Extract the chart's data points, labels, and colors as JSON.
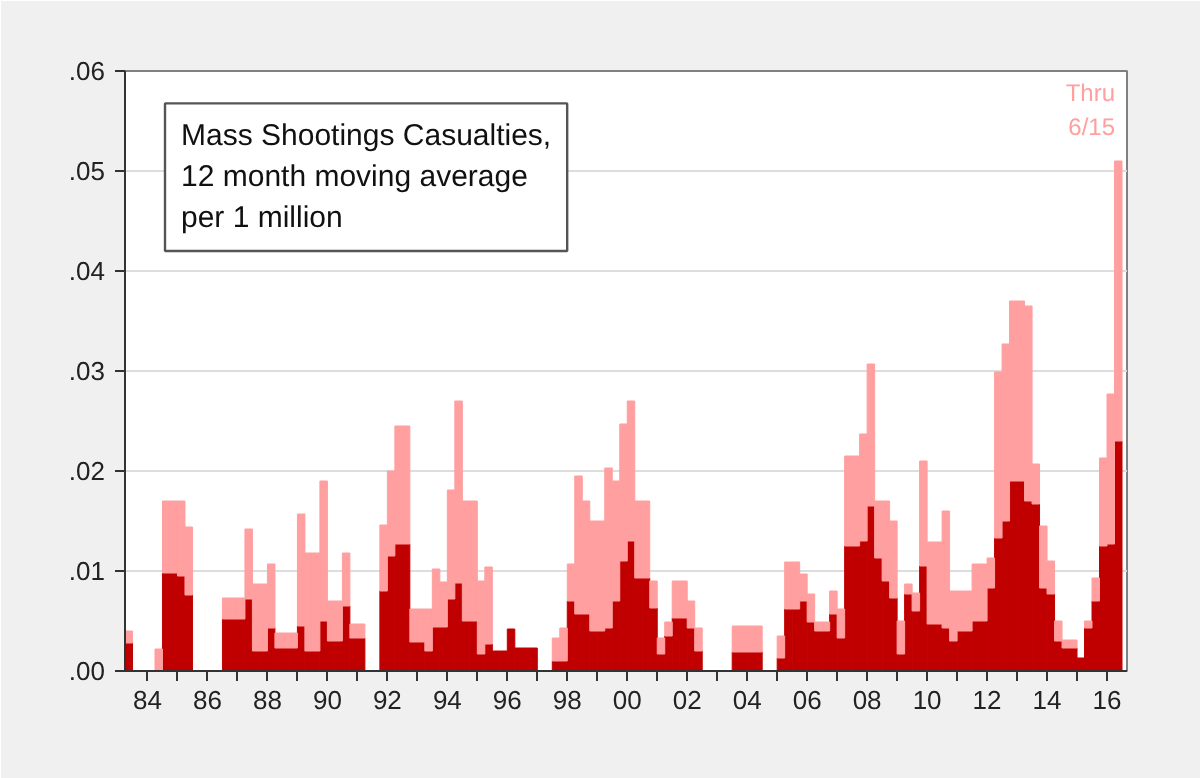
{
  "chart_data": {
    "type": "bar",
    "title": "Mass Shootings Casualties,\n12 month moving average\nper 1 million",
    "stacked": true,
    "annotations": [
      "Thru\n6/15"
    ],
    "x": [
      "1983-04",
      "1983-07",
      "1983-10",
      "1984-01",
      "1984-04",
      "1984-07",
      "1984-10",
      "1985-01",
      "1985-04",
      "1985-07",
      "1985-10",
      "1986-01",
      "1986-04",
      "1986-07",
      "1986-10",
      "1987-01",
      "1987-04",
      "1987-07",
      "1987-10",
      "1988-01",
      "1988-04",
      "1988-07",
      "1988-10",
      "1989-01",
      "1989-04",
      "1989-07",
      "1989-10",
      "1990-01",
      "1990-04",
      "1990-07",
      "1990-10",
      "1991-01",
      "1991-04",
      "1991-07",
      "1991-10",
      "1992-01",
      "1992-04",
      "1992-07",
      "1992-10",
      "1993-01",
      "1993-04",
      "1993-07",
      "1993-10",
      "1994-01",
      "1994-04",
      "1994-07",
      "1994-10",
      "1995-01",
      "1995-04",
      "1995-07",
      "1995-10",
      "1996-01",
      "1996-04",
      "1996-07",
      "1996-10",
      "1997-01",
      "1997-04",
      "1997-07",
      "1997-10",
      "1998-01",
      "1998-04",
      "1998-07",
      "1998-10",
      "1999-01",
      "1999-04",
      "1999-07",
      "1999-10",
      "2000-01",
      "2000-04",
      "2000-07",
      "2000-10",
      "2001-01",
      "2001-04",
      "2001-07",
      "2001-10",
      "2002-01",
      "2002-04",
      "2002-07",
      "2002-10",
      "2003-01",
      "2003-04",
      "2003-07",
      "2003-10",
      "2004-01",
      "2004-04",
      "2004-07",
      "2004-10",
      "2005-01",
      "2005-04",
      "2005-07",
      "2005-10",
      "2006-01",
      "2006-04",
      "2006-07",
      "2006-10",
      "2007-01",
      "2007-04",
      "2007-07",
      "2007-10",
      "2008-01",
      "2008-04",
      "2008-07",
      "2008-10",
      "2009-01",
      "2009-04",
      "2009-07",
      "2009-10",
      "2010-01",
      "2010-04",
      "2010-07",
      "2010-10",
      "2011-01",
      "2011-04",
      "2011-07",
      "2011-10",
      "2012-01",
      "2012-04",
      "2012-07",
      "2012-10",
      "2013-01",
      "2013-04",
      "2013-07",
      "2013-10",
      "2014-01",
      "2014-04",
      "2014-07",
      "2014-10",
      "2015-01",
      "2015-04",
      "2015-07",
      "2015-10",
      "2016-01",
      "2016-04"
    ],
    "series": [
      {
        "color": "#c00000",
        "values": [
          0.0028,
          null,
          null,
          null,
          null,
          0.0098,
          0.0098,
          0.0095,
          0.0076,
          null,
          null,
          null,
          null,
          0.0052,
          0.0052,
          0.0052,
          0.0072,
          0.002,
          0.002,
          0.0043,
          0.0023,
          0.0023,
          0.0023,
          0.0045,
          0.002,
          0.002,
          0.005,
          0.003,
          0.003,
          0.0065,
          0.0033,
          0.0033,
          null,
          null,
          0.008,
          0.0115,
          0.0127,
          0.0127,
          0.0029,
          0.0029,
          0.002,
          0.0044,
          0.0044,
          0.0072,
          0.0088,
          0.005,
          0.005,
          0.0017,
          0.0027,
          0.002,
          0.002,
          0.0042,
          0.0023,
          0.0023,
          0.0023,
          null,
          null,
          0.001,
          0.001,
          0.007,
          0.0057,
          0.0057,
          0.004,
          0.004,
          0.0043,
          0.007,
          0.011,
          0.013,
          0.0093,
          0.0093,
          0.0063,
          0.0017,
          0.0035,
          0.0053,
          0.0053,
          0.0043,
          0.002,
          null,
          null,
          null,
          null,
          0.0019,
          0.0019,
          0.0019,
          0.0019,
          null,
          null,
          0.0013,
          0.0062,
          0.0062,
          0.007,
          0.0049,
          0.004,
          0.004,
          0.0057,
          0.0033,
          0.0125,
          0.0125,
          0.013,
          0.0165,
          0.0113,
          0.009,
          0.0073,
          0.0017,
          0.0077,
          0.006,
          0.0105,
          0.0047,
          0.0047,
          0.0043,
          0.003,
          0.004,
          0.004,
          0.005,
          0.005,
          0.0083,
          0.0133,
          0.015,
          0.019,
          0.019,
          0.017,
          0.0167,
          0.0083,
          0.0077,
          0.003,
          0.0023,
          0.0023,
          0.0013,
          0.0043,
          0.007,
          0.0125,
          0.0127,
          0.023
        ]
      },
      {
        "color": "#ff9f9f",
        "values": [
          0.0012,
          null,
          null,
          null,
          0.0022,
          0.0072,
          0.0072,
          0.0075,
          0.0068,
          null,
          null,
          null,
          null,
          0.0021,
          0.0021,
          0.0021,
          0.007,
          0.0067,
          0.0067,
          0.0064,
          0.0015,
          0.0015,
          0.0015,
          0.0112,
          0.0098,
          0.0098,
          0.014,
          0.004,
          0.004,
          0.0053,
          0.0014,
          0.0014,
          null,
          null,
          0.0066,
          0.0085,
          0.0118,
          0.0118,
          0.0033,
          0.0033,
          0.0042,
          0.0058,
          0.0045,
          0.0109,
          0.0182,
          0.012,
          0.012,
          0.0073,
          0.0077,
          null,
          null,
          null,
          null,
          null,
          null,
          null,
          null,
          0.0023,
          0.0033,
          0.0037,
          0.0138,
          0.0113,
          0.011,
          0.011,
          0.016,
          0.012,
          0.0137,
          0.014,
          0.0077,
          0.0077,
          0.0027,
          0.0016,
          0.0014,
          0.0037,
          0.0037,
          0.0027,
          0.0023,
          null,
          null,
          null,
          null,
          0.0026,
          0.0026,
          0.0026,
          0.0026,
          null,
          null,
          0.0022,
          0.0047,
          0.0047,
          0.0027,
          0.0028,
          0.0009,
          0.0009,
          0.0023,
          0.0029,
          0.009,
          0.009,
          0.0107,
          0.0142,
          0.0057,
          0.008,
          0.0077,
          0.0033,
          0.001,
          0.0018,
          0.0105,
          0.0082,
          0.0082,
          0.0117,
          0.005,
          0.004,
          0.004,
          0.0057,
          0.0057,
          0.003,
          0.0166,
          0.0177,
          0.018,
          0.018,
          0.0195,
          0.004,
          0.0062,
          0.0033,
          0.002,
          0.0008,
          0.0008,
          null,
          0.0007,
          0.0023,
          0.0088,
          0.015,
          0.028
        ]
      }
    ],
    "xlim": [
      "1983-04",
      "2016-09"
    ],
    "xticks": [
      {
        "value": "1984-01",
        "label": "84"
      },
      {
        "value": "1985-01",
        "label": null
      },
      {
        "value": "1986-01",
        "label": "86"
      },
      {
        "value": "1987-01",
        "label": null
      },
      {
        "value": "1988-01",
        "label": "88"
      },
      {
        "value": "1989-01",
        "label": null
      },
      {
        "value": "1990-01",
        "label": "90"
      },
      {
        "value": "1991-01",
        "label": null
      },
      {
        "value": "1992-01",
        "label": "92"
      },
      {
        "value": "1993-01",
        "label": null
      },
      {
        "value": "1994-01",
        "label": "94"
      },
      {
        "value": "1995-01",
        "label": null
      },
      {
        "value": "1996-01",
        "label": "96"
      },
      {
        "value": "1997-01",
        "label": null
      },
      {
        "value": "1998-01",
        "label": "98"
      },
      {
        "value": "1999-01",
        "label": null
      },
      {
        "value": "2000-01",
        "label": "00"
      },
      {
        "value": "2001-01",
        "label": null
      },
      {
        "value": "2002-01",
        "label": "02"
      },
      {
        "value": "2003-01",
        "label": null
      },
      {
        "value": "2004-01",
        "label": "04"
      },
      {
        "value": "2005-01",
        "label": null
      },
      {
        "value": "2006-01",
        "label": "06"
      },
      {
        "value": "2007-01",
        "label": null
      },
      {
        "value": "2008-01",
        "label": "08"
      },
      {
        "value": "2009-01",
        "label": null
      },
      {
        "value": "2010-01",
        "label": "10"
      },
      {
        "value": "2011-01",
        "label": null
      },
      {
        "value": "2012-01",
        "label": "12"
      },
      {
        "value": "2013-01",
        "label": null
      },
      {
        "value": "2014-01",
        "label": "14"
      },
      {
        "value": "2015-01",
        "label": null
      },
      {
        "value": "2016-01",
        "label": "16"
      }
    ],
    "ylim": [
      0,
      0.06
    ],
    "yticks": [
      {
        "value": 0,
        "label": ".00"
      },
      {
        "value": 0.01,
        "label": ".01"
      },
      {
        "value": 0.02,
        "label": ".02"
      },
      {
        "value": 0.03,
        "label": ".03"
      },
      {
        "value": 0.04,
        "label": ".04"
      },
      {
        "value": 0.05,
        "label": ".05"
      },
      {
        "value": 0.06,
        "label": ".06"
      }
    ],
    "grid": "y"
  }
}
